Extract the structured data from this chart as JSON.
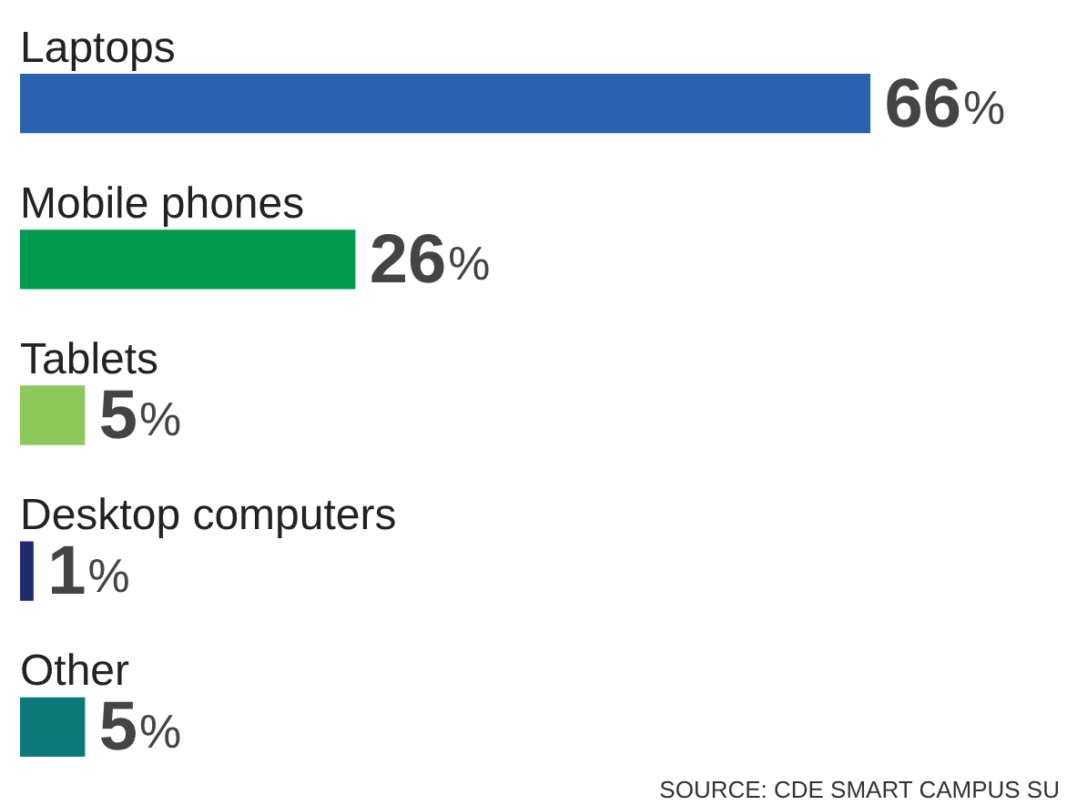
{
  "chart_data": {
    "type": "bar",
    "orientation": "horizontal",
    "categories": [
      "Laptops",
      "Mobile phones",
      "Tablets",
      "Desktop computers",
      "Other"
    ],
    "values": [
      66,
      26,
      5,
      1,
      5
    ],
    "colors": [
      "#2a62b0",
      "#00994f",
      "#8dc85b",
      "#1f2a6b",
      "#0c7a78"
    ],
    "value_labels": [
      "66%",
      "26%",
      "5%",
      "1%",
      "5%"
    ],
    "legend": false,
    "annotations": [
      "SOURCE: CDE SMART CAMPUS SU"
    ]
  }
}
